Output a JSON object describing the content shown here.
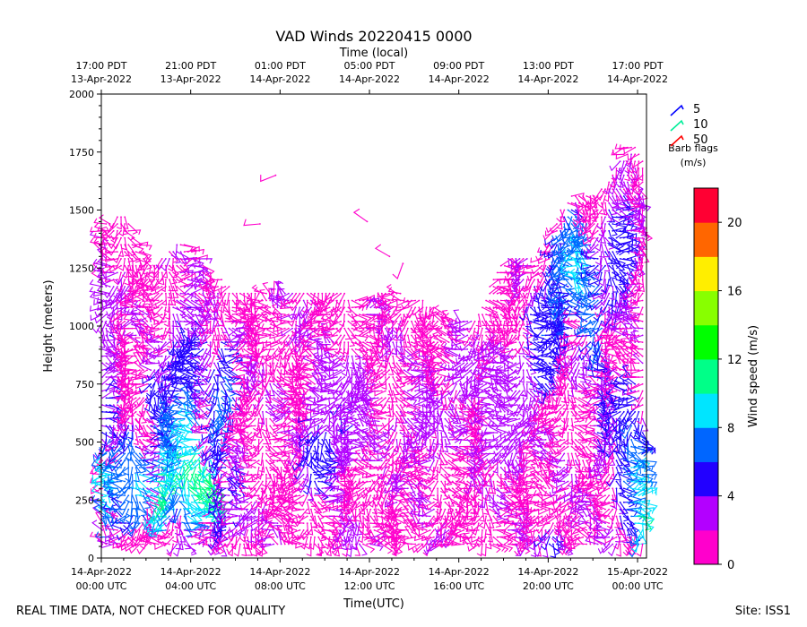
{
  "chart_data": {
    "type": "wind-barb-profile",
    "title": "VAD Winds 20220415 0000",
    "top_axis_label": "Time (local)",
    "xlabel": "Time(UTC)",
    "ylabel": "Height (meters)",
    "ylim": [
      0,
      2000
    ],
    "y_ticks": [
      0,
      250,
      500,
      750,
      1000,
      1250,
      1500,
      1750,
      2000
    ],
    "x_range_hours": [
      0,
      24.4
    ],
    "bottom_ticks": [
      {
        "hour": 0,
        "line1": "14-Apr-2022",
        "line2": "00:00 UTC"
      },
      {
        "hour": 4,
        "line1": "14-Apr-2022",
        "line2": "04:00 UTC"
      },
      {
        "hour": 8,
        "line1": "14-Apr-2022",
        "line2": "08:00 UTC"
      },
      {
        "hour": 12,
        "line1": "14-Apr-2022",
        "line2": "12:00 UTC"
      },
      {
        "hour": 16,
        "line1": "14-Apr-2022",
        "line2": "16:00 UTC"
      },
      {
        "hour": 20,
        "line1": "14-Apr-2022",
        "line2": "20:00 UTC"
      },
      {
        "hour": 24,
        "line1": "15-Apr-2022",
        "line2": "00:00 UTC"
      }
    ],
    "top_ticks": [
      {
        "hour": 0,
        "line1": "17:00 PDT",
        "line2": "13-Apr-2022"
      },
      {
        "hour": 4,
        "line1": "21:00 PDT",
        "line2": "13-Apr-2022"
      },
      {
        "hour": 8,
        "line1": "01:00 PDT",
        "line2": "14-Apr-2022"
      },
      {
        "hour": 12,
        "line1": "05:00 PDT",
        "line2": "14-Apr-2022"
      },
      {
        "hour": 16,
        "line1": "09:00 PDT",
        "line2": "14-Apr-2022"
      },
      {
        "hour": 20,
        "line1": "13:00 PDT",
        "line2": "14-Apr-2022"
      },
      {
        "hour": 24,
        "line1": "17:00 PDT",
        "line2": "14-Apr-2022"
      }
    ],
    "barb_legend": {
      "title_line1": "Barb flags",
      "title_line2": "(m/s)",
      "items": [
        {
          "label": "5",
          "color": "#0000ff"
        },
        {
          "label": "10",
          "color": "#00ee99"
        },
        {
          "label": "50",
          "color": "#ff0000"
        }
      ]
    },
    "colorbar": {
      "label": "Wind speed (m/s)",
      "min": 0,
      "max": 22,
      "ticks": [
        0,
        4,
        8,
        12,
        16,
        20
      ],
      "bins": [
        {
          "from": 0,
          "to": 2,
          "color": "#ff00cc"
        },
        {
          "from": 2,
          "to": 4,
          "color": "#b300ff"
        },
        {
          "from": 4,
          "to": 6,
          "color": "#2200ff"
        },
        {
          "from": 6,
          "to": 8,
          "color": "#0066ff"
        },
        {
          "from": 8,
          "to": 10,
          "color": "#00e5ff"
        },
        {
          "from": 10,
          "to": 12,
          "color": "#00ff88"
        },
        {
          "from": 12,
          "to": 14,
          "color": "#00ff00"
        },
        {
          "from": 14,
          "to": 16,
          "color": "#88ff00"
        },
        {
          "from": 16,
          "to": 18,
          "color": "#ffee00"
        },
        {
          "from": 18,
          "to": 20,
          "color": "#ff6600"
        },
        {
          "from": 20,
          "to": 22,
          "color": "#ff0033"
        }
      ]
    },
    "data_extent_top_m": [
      [
        0.0,
        1430
      ],
      [
        0.5,
        1460
      ],
      [
        1.0,
        1500
      ],
      [
        1.5,
        1380
      ],
      [
        2.0,
        1320
      ],
      [
        2.5,
        1260
      ],
      [
        3.0,
        1330
      ],
      [
        3.5,
        1360
      ],
      [
        4.0,
        1340
      ],
      [
        4.5,
        1280
      ],
      [
        5.0,
        1220
      ],
      [
        5.5,
        1200
      ],
      [
        6.0,
        1150
      ],
      [
        6.5,
        1140
      ],
      [
        7.0,
        1140
      ],
      [
        7.5,
        1140
      ],
      [
        8.0,
        1160
      ],
      [
        8.5,
        1160
      ],
      [
        9.0,
        1170
      ],
      [
        9.5,
        1150
      ],
      [
        10.0,
        1160
      ],
      [
        10.5,
        1150
      ],
      [
        11.0,
        1140
      ],
      [
        11.5,
        1130
      ],
      [
        12.0,
        1130
      ],
      [
        12.5,
        1150
      ],
      [
        13.0,
        1160
      ],
      [
        13.5,
        1140
      ],
      [
        14.0,
        1130
      ],
      [
        14.5,
        1110
      ],
      [
        15.0,
        1080
      ],
      [
        15.5,
        1050
      ],
      [
        16.0,
        1020
      ],
      [
        16.5,
        1020
      ],
      [
        17.0,
        1080
      ],
      [
        17.5,
        1200
      ],
      [
        18.0,
        1280
      ],
      [
        18.5,
        1320
      ],
      [
        19.0,
        1300
      ],
      [
        19.5,
        1270
      ],
      [
        20.0,
        1340
      ],
      [
        20.5,
        1500
      ],
      [
        21.0,
        1560
      ],
      [
        21.5,
        1570
      ],
      [
        22.0,
        1580
      ],
      [
        22.5,
        1600
      ],
      [
        23.0,
        1680
      ],
      [
        23.5,
        1800
      ],
      [
        24.0,
        1780
      ],
      [
        24.4,
        1700
      ]
    ],
    "data_extent_bottom_m": 60,
    "speed_regions_ms": [
      {
        "t": 0.4,
        "h": 300,
        "rt": 0.35,
        "rh": 220,
        "speed": 9.5
      },
      {
        "t": 0.3,
        "h": 600,
        "rt": 0.3,
        "rh": 250,
        "speed": 5.0
      },
      {
        "t": 0.3,
        "h": 950,
        "rt": 0.35,
        "rh": 350,
        "speed": 3.5
      },
      {
        "t": 1.2,
        "h": 350,
        "rt": 0.45,
        "rh": 250,
        "speed": 7.5
      },
      {
        "t": 1.6,
        "h": 300,
        "rt": 0.4,
        "rh": 180,
        "speed": 8.5
      },
      {
        "t": 2.7,
        "h": 300,
        "rt": 0.5,
        "rh": 200,
        "speed": 11.0
      },
      {
        "t": 2.6,
        "h": 600,
        "rt": 0.55,
        "rh": 220,
        "speed": 6.0
      },
      {
        "t": 3.3,
        "h": 450,
        "rt": 0.5,
        "rh": 250,
        "speed": 8.5
      },
      {
        "t": 4.0,
        "h": 400,
        "rt": 0.6,
        "rh": 300,
        "speed": 10.0
      },
      {
        "t": 4.3,
        "h": 350,
        "rt": 0.4,
        "rh": 200,
        "speed": 11.5
      },
      {
        "t": 4.8,
        "h": 300,
        "rt": 0.35,
        "rh": 150,
        "speed": 12.5
      },
      {
        "t": 4.0,
        "h": 820,
        "rt": 1.0,
        "rh": 250,
        "speed": 5.0
      },
      {
        "t": 3.8,
        "h": 1000,
        "rt": 0.7,
        "rh": 150,
        "speed": 4.0
      },
      {
        "t": 5.4,
        "h": 650,
        "rt": 0.5,
        "rh": 300,
        "speed": 6.5
      },
      {
        "t": 5.3,
        "h": 200,
        "rt": 0.5,
        "rh": 150,
        "speed": 5.0
      },
      {
        "t": 6.3,
        "h": 300,
        "rt": 0.4,
        "rh": 200,
        "speed": 4.5
      },
      {
        "t": 9.7,
        "h": 450,
        "rt": 0.8,
        "rh": 180,
        "speed": 5.0
      },
      {
        "t": 11.0,
        "h": 650,
        "rt": 1.5,
        "rh": 250,
        "speed": 3.6
      },
      {
        "t": 14.5,
        "h": 620,
        "rt": 1.5,
        "rh": 250,
        "speed": 2.6
      },
      {
        "t": 16.5,
        "h": 800,
        "rt": 1.0,
        "rh": 150,
        "speed": 3.0
      },
      {
        "t": 18.3,
        "h": 650,
        "rt": 1.3,
        "rh": 300,
        "speed": 3.0
      },
      {
        "t": 19.7,
        "h": 950,
        "rt": 0.8,
        "rh": 250,
        "speed": 5.5
      },
      {
        "t": 20.6,
        "h": 1150,
        "rt": 0.6,
        "rh": 250,
        "speed": 6.5
      },
      {
        "t": 21.0,
        "h": 1350,
        "rt": 0.5,
        "rh": 180,
        "speed": 8.0
      },
      {
        "t": 21.5,
        "h": 1250,
        "rt": 0.55,
        "rh": 220,
        "speed": 9.0
      },
      {
        "t": 22.1,
        "h": 1050,
        "rt": 0.4,
        "rh": 280,
        "speed": 7.0
      },
      {
        "t": 23.1,
        "h": 1300,
        "rt": 0.8,
        "rh": 300,
        "speed": 5.0
      },
      {
        "t": 22.4,
        "h": 650,
        "rt": 0.5,
        "rh": 300,
        "speed": 4.5
      },
      {
        "t": 23.6,
        "h": 450,
        "rt": 0.7,
        "rh": 350,
        "speed": 6.0
      },
      {
        "t": 23.8,
        "h": 350,
        "rt": 0.5,
        "rh": 200,
        "speed": 8.5
      },
      {
        "t": 24.1,
        "h": 200,
        "rt": 0.3,
        "rh": 150,
        "speed": 10.5
      },
      {
        "t": 20.2,
        "h": 80,
        "rt": 0.6,
        "rh": 60,
        "speed": 5.0
      }
    ],
    "sparse_barbs": [
      {
        "hour": 7.8,
        "height_m": 1650,
        "dir_deg": 248,
        "speed_ms": 1.0
      },
      {
        "hour": 7.1,
        "height_m": 1440,
        "dir_deg": 265,
        "speed_ms": 1.0
      },
      {
        "hour": 11.9,
        "height_m": 1450,
        "dir_deg": 305,
        "speed_ms": 1.0
      },
      {
        "hour": 12.9,
        "height_m": 1300,
        "dir_deg": 300,
        "speed_ms": 1.0
      },
      {
        "hour": 13.5,
        "height_m": 1270,
        "dir_deg": 200,
        "speed_ms": 1.0
      }
    ]
  },
  "footer": {
    "quality_note": "REAL TIME DATA, NOT CHECKED FOR QUALITY",
    "site": "Site: ISS1"
  }
}
